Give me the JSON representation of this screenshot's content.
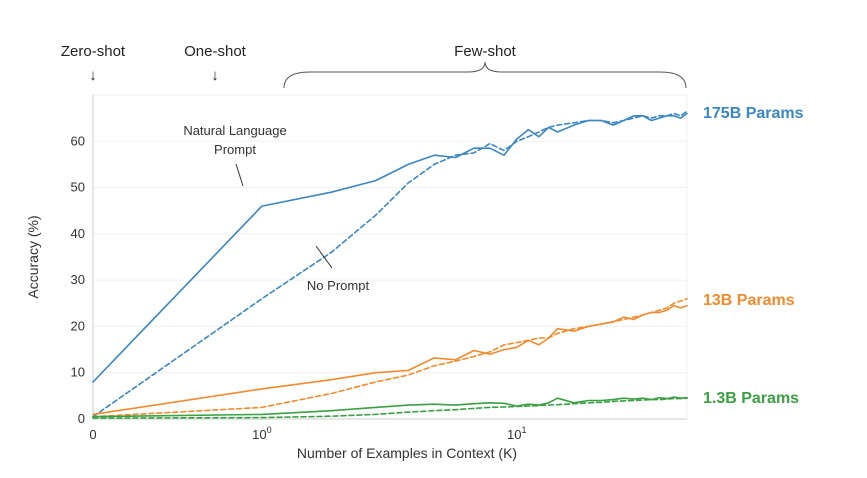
{
  "chart_data": {
    "type": "line",
    "title": "",
    "xlabel": "Number of Examples in Context  (K)",
    "ylabel": "Accuracy (%)",
    "xscale": "symlog",
    "xlim": [
      0,
      40
    ],
    "ylim": [
      0,
      70
    ],
    "yticks": [
      0,
      10,
      20,
      30,
      40,
      50,
      60
    ],
    "xticks": [
      {
        "value": 0,
        "base": "0",
        "exp": ""
      },
      {
        "value": 1,
        "base": "10",
        "exp": "0"
      },
      {
        "value": 10,
        "base": "10",
        "exp": "1"
      }
    ],
    "top_labels": [
      {
        "text": "Zero-shot",
        "arrow": "↓"
      },
      {
        "text": "One-shot",
        "arrow": "↓"
      },
      {
        "text": "Few-shot",
        "bracket_from": 1.6,
        "bracket_to": 40
      }
    ],
    "annotations": [
      {
        "lines": [
          "Natural Language",
          "Prompt"
        ]
      },
      {
        "lines": [
          "No Prompt"
        ]
      }
    ],
    "colors": {
      "175B": "#3b87c4",
      "13B": "#f28a2e",
      "1.3B": "#3aa043"
    },
    "series": [
      {
        "name": "175B Params",
        "group": "175B",
        "style": "solid",
        "x": [
          0,
          1,
          2,
          3,
          4,
          5,
          6,
          7,
          8,
          9,
          10,
          11,
          12,
          13,
          14,
          16,
          18,
          20,
          22,
          24,
          26,
          28,
          30,
          32,
          34,
          36,
          38,
          40
        ],
        "y": [
          8,
          46,
          49,
          51.5,
          55,
          57,
          56.5,
          58.5,
          58.5,
          57,
          60.5,
          62.5,
          61,
          63,
          62,
          63.5,
          64.5,
          64.5,
          63.5,
          64.5,
          65.5,
          65.5,
          64.5,
          65,
          65.5,
          65.5,
          65,
          66
        ]
      },
      {
        "name": "175B No Prompt",
        "group": "175B",
        "style": "dashed",
        "x": [
          0,
          1,
          2,
          3,
          4,
          5,
          6,
          7,
          8,
          9,
          10,
          11,
          12,
          13,
          14,
          16,
          18,
          20,
          22,
          24,
          26,
          28,
          30,
          32,
          34,
          36,
          38,
          40
        ],
        "y": [
          0.5,
          26,
          36,
          44,
          51,
          55,
          57,
          57.5,
          59.5,
          58,
          60,
          61,
          62,
          63,
          63.5,
          64,
          64.5,
          64.5,
          64,
          64.5,
          65,
          65.5,
          65,
          65.5,
          65.5,
          66,
          65.5,
          66.5
        ]
      },
      {
        "name": "13B Params",
        "group": "13B",
        "style": "solid",
        "x": [
          0,
          1,
          2,
          3,
          4,
          5,
          6,
          7,
          8,
          9,
          10,
          11,
          12,
          13,
          14,
          16,
          18,
          20,
          22,
          24,
          26,
          28,
          30,
          32,
          34,
          36,
          38,
          40
        ],
        "y": [
          1,
          6.5,
          8.5,
          10,
          10.5,
          13.2,
          12.8,
          14.8,
          14,
          15,
          15.5,
          17,
          16,
          17.5,
          19.5,
          19,
          20,
          20.5,
          21,
          22,
          21.5,
          22.5,
          23,
          23,
          23.5,
          24.5,
          24,
          24.5
        ]
      },
      {
        "name": "13B No Prompt",
        "group": "13B",
        "style": "dashed",
        "x": [
          0,
          1,
          2,
          3,
          4,
          5,
          6,
          7,
          8,
          9,
          10,
          11,
          12,
          13,
          14,
          16,
          18,
          20,
          22,
          24,
          26,
          28,
          30,
          32,
          34,
          36,
          38,
          40
        ],
        "y": [
          0.5,
          2.5,
          5.5,
          8,
          9.5,
          11.5,
          12.5,
          13.5,
          14.5,
          16,
          16.5,
          17,
          17.5,
          17.5,
          18.5,
          19.5,
          20,
          20.5,
          21,
          21.5,
          22,
          22.5,
          23,
          23.5,
          24,
          25,
          25.5,
          26
        ]
      },
      {
        "name": "1.3B Params",
        "group": "1.3B",
        "style": "solid",
        "x": [
          0,
          1,
          2,
          3,
          4,
          5,
          6,
          7,
          8,
          9,
          10,
          11,
          12,
          13,
          14,
          16,
          18,
          20,
          22,
          24,
          26,
          28,
          30,
          32,
          34,
          36,
          38,
          40
        ],
        "y": [
          0.5,
          1,
          1.8,
          2.5,
          3,
          3.2,
          3,
          3.3,
          3.5,
          3.4,
          2.8,
          3.2,
          3,
          3.5,
          4.5,
          3.5,
          4,
          4,
          4.2,
          4.5,
          4.3,
          4.5,
          4.2,
          4.6,
          4.4,
          4.7,
          4.5,
          4.6
        ]
      },
      {
        "name": "1.3B No Prompt",
        "group": "1.3B",
        "style": "dashed",
        "x": [
          0,
          1,
          2,
          3,
          4,
          5,
          6,
          7,
          8,
          9,
          10,
          11,
          12,
          13,
          14,
          16,
          18,
          20,
          22,
          24,
          26,
          28,
          30,
          32,
          34,
          36,
          38,
          40
        ],
        "y": [
          0.2,
          0.3,
          0.6,
          1,
          1.5,
          1.8,
          2,
          2.3,
          2.5,
          2.6,
          2.7,
          2.8,
          2.9,
          3,
          3.1,
          3.3,
          3.5,
          3.6,
          3.8,
          3.9,
          4,
          4.1,
          4.2,
          4.2,
          4.3,
          4.4,
          4.4,
          4.5
        ]
      }
    ],
    "series_labels": [
      {
        "text": "175B Params",
        "group": "175B"
      },
      {
        "text": "13B Params",
        "group": "13B"
      },
      {
        "text": "1.3B Params",
        "group": "1.3B"
      }
    ]
  }
}
